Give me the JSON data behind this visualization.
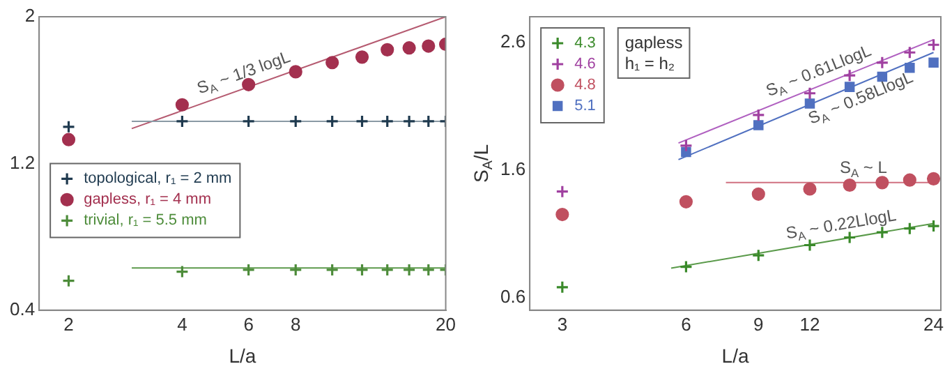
{
  "chart_data": [
    {
      "type": "scatter",
      "xlabel": "L/a",
      "log": "x",
      "xlim": [
        1.67,
        20
      ],
      "xticks": [
        2,
        4,
        6,
        8,
        20
      ],
      "ylim": [
        0.4,
        2
      ],
      "yticks": [
        0.4,
        1.2,
        2
      ],
      "legend": "left",
      "grid": false,
      "annotations": [
        {
          "text": "S$_{A}$ ~ 1/3 logL",
          "x": 6,
          "y": 1.62
        }
      ],
      "x": [
        2,
        4,
        6,
        8,
        10,
        12,
        14,
        16,
        18,
        20
      ],
      "series": [
        {
          "name": "topological, r₁ = 2 mm",
          "marker": "cross",
          "color": "#1f3a4f",
          "values": [
            1.4,
            1.43,
            1.43,
            1.43,
            1.43,
            1.43,
            1.43,
            1.43,
            1.43,
            1.43
          ]
        },
        {
          "name": "gapless, r₁ = 4 mm",
          "marker": "circle",
          "color": "#a3304f",
          "values": [
            1.33,
            1.52,
            1.63,
            1.7,
            1.75,
            1.78,
            1.82,
            1.83,
            1.84,
            1.85
          ]
        },
        {
          "name": "trivial, r₁ = 5.5 mm",
          "marker": "cross",
          "color": "#4d8c3a",
          "values": [
            0.56,
            0.61,
            0.62,
            0.62,
            0.62,
            0.62,
            0.62,
            0.62,
            0.62,
            0.62
          ]
        },
        {
          "type": "line",
          "x": [
            2.94,
            20
          ],
          "values": [
            1.43,
            1.43
          ],
          "color": "#8a9aa5"
        },
        {
          "type": "line",
          "x": [
            2.94,
            20
          ],
          "values": [
            1.39,
            2.0
          ],
          "color": "#b55a70"
        },
        {
          "type": "line",
          "x": [
            2.94,
            20
          ],
          "values": [
            0.63,
            0.63
          ],
          "color": "#5d9a4d"
        }
      ]
    },
    {
      "type": "scatter",
      "xlabel": "L/a",
      "ylabel": "S$_{A}$/L",
      "log": "x",
      "xlim": [
        2.5,
        25
      ],
      "xticks": [
        3,
        6,
        9,
        12,
        24
      ],
      "ylim": [
        0.5,
        2.8
      ],
      "yticks": [
        0.6,
        1.6,
        2.6
      ],
      "legend": "top left",
      "legend_title": "gapless h₁ = h₂",
      "grid": false,
      "annotations": [
        {
          "text": "S$_{A}$ ~ 0.61LlogL",
          "x": 13,
          "y": 2.27
        },
        {
          "text": "S$_{A}$ ~ 0.58LlogL",
          "x": 15.5,
          "y": 2.26
        },
        {
          "text": "S$_{A}$ ~ L",
          "x": 16.2,
          "y": 1.5
        },
        {
          "text": "S$_{A}$ ~ 0.22LlogL",
          "x": 14.5,
          "y": 1.06
        }
      ],
      "x": [
        3,
        6,
        9,
        12,
        15,
        18,
        21,
        24
      ],
      "series": [
        {
          "name": "4.3",
          "marker": "cross",
          "color": "#3a8a2a",
          "values": [
            0.68,
            0.84,
            0.93,
            1.01,
            1.07,
            1.11,
            1.14,
            1.16
          ]
        },
        {
          "name": "4.6",
          "marker": "cross",
          "color": "#a040a0",
          "values": [
            1.43,
            1.79,
            2.03,
            2.2,
            2.34,
            2.44,
            2.52,
            2.58
          ]
        },
        {
          "name": "4.8",
          "marker": "circle",
          "color": "#c05060",
          "values": [
            1.25,
            1.35,
            1.41,
            1.45,
            1.48,
            1.5,
            1.52,
            1.53
          ]
        },
        {
          "name": "5.1",
          "marker": "square",
          "color": "#5070c0",
          "values": [
            null,
            1.74,
            1.95,
            2.12,
            2.25,
            2.33,
            2.4,
            2.44
          ]
        },
        {
          "type": "line",
          "x": [
            5.75,
            24
          ],
          "values": [
            1.81,
            2.62
          ],
          "color": "#b060c0"
        },
        {
          "type": "line",
          "x": [
            5.75,
            24
          ],
          "values": [
            1.68,
            2.52
          ],
          "color": "#5070c0"
        },
        {
          "type": "line",
          "x": [
            7.5,
            24
          ],
          "values": [
            1.5,
            1.5
          ],
          "color": "#d07080"
        },
        {
          "type": "line",
          "x": [
            5.52,
            24
          ],
          "values": [
            0.83,
            1.18
          ],
          "color": "#5a9a4a"
        }
      ]
    }
  ]
}
